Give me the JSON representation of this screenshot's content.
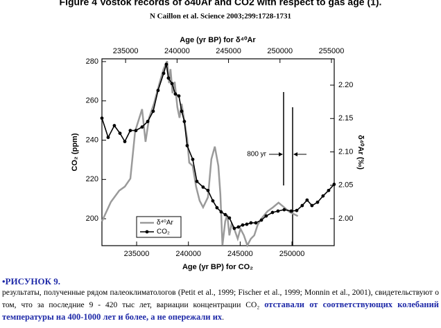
{
  "chart_data": {
    "type": "line",
    "title": "Figure 4 Vostok records of δ40Ar and CO2 with respect to gas age (1).",
    "subtitle": "N Caillon et al. Science 2003;299:1728-1731",
    "xlabel": "Age (yr BP) for CO₂",
    "x2label": "Age (yr BP) for δ⁴⁰Ar",
    "ylabel": "CO₂ (ppm)",
    "y2label": "δ⁴⁰Ar (‰)",
    "annotation": "800 yr",
    "xlim": [
      231650,
      254080
    ],
    "xticks": [
      235000,
      240000,
      245000,
      250000
    ],
    "x2lim": [
      232700,
      255270
    ],
    "x2ticks": [
      235000,
      240000,
      245000,
      250000,
      255000
    ],
    "ylim": [
      186.3,
      281.4
    ],
    "yticks": [
      200,
      220,
      240,
      260,
      280
    ],
    "y2lim": [
      1.9596,
      2.2394
    ],
    "y2ticks": [
      {
        "value": 2,
        "label": "2.00"
      },
      2.05,
      {
        "value": 2.1,
        "label": "2.10"
      },
      2.15,
      {
        "value": 2.2,
        "label": "2.20"
      }
    ],
    "series": [
      {
        "name": "δ⁴⁰Ar",
        "color": "#9a9a9a",
        "axis": "y2",
        "x_axis": "x2",
        "x": [
          232700,
          233570,
          234380,
          234920,
          235460,
          235930,
          236600,
          236940,
          237280,
          237750,
          238290,
          238690,
          239030,
          239230,
          239360,
          239560,
          239770,
          240030,
          240240,
          240440,
          240710,
          240980,
          241180,
          241520,
          241850,
          242190,
          242530,
          243000,
          243330,
          243670,
          244010,
          244210,
          244410,
          244680,
          244880,
          245080,
          245280,
          245550,
          245890,
          246160,
          246490,
          246830,
          247170,
          247500,
          247840,
          248240,
          248780,
          249320,
          249860,
          250400,
          250940,
          251740
        ],
        "values": [
          1.996,
          2.025,
          2.042,
          2.048,
          2.06,
          2.131,
          2.164,
          2.115,
          2.151,
          2.172,
          2.203,
          2.224,
          2.236,
          2.203,
          2.224,
          2.188,
          2.205,
          2.167,
          2.151,
          2.172,
          2.146,
          2.12,
          2.084,
          2.079,
          2.048,
          2.027,
          2.017,
          2.032,
          2.089,
          2.108,
          2.079,
          2.037,
          1.96,
          1.996,
          2.006,
          1.975,
          1.991,
          1.985,
          1.97,
          1.985,
          1.975,
          1.96,
          1.97,
          1.975,
          1.991,
          2.001,
          2.011,
          2.017,
          2.024,
          2.017,
          2.01,
          2.004
        ]
      },
      {
        "name": "CO₂",
        "color": "#000000",
        "x": [
          231650,
          232250,
          232850,
          233390,
          233860,
          234390,
          234930,
          235530,
          236070,
          236600,
          237070,
          237610,
          237870,
          238070,
          238410,
          238740,
          239080,
          239350,
          239610,
          239880,
          240420,
          240820,
          241420,
          241890,
          242360,
          242760,
          243160,
          243560,
          243960,
          244430,
          244830,
          245240,
          245640,
          246040,
          246510,
          247050,
          247510,
          248120,
          248650,
          249250,
          249920,
          250460,
          250990,
          251460,
          251930,
          252470,
          253000,
          253540,
          254070
        ],
        "values": [
          251.2,
          241.4,
          247.4,
          243.5,
          239.3,
          244.9,
          244.9,
          246.7,
          249.5,
          254.7,
          265.3,
          274.0,
          278.6,
          271.6,
          268.8,
          263.5,
          262.5,
          254.7,
          249.5,
          237.2,
          230.2,
          219.0,
          216.1,
          214.4,
          209.1,
          205.6,
          203.5,
          202.1,
          200.4,
          195.1,
          195.8,
          196.8,
          197.2,
          197.9,
          197.9,
          199.3,
          201.4,
          203.2,
          203.9,
          204.6,
          203.9,
          204.2,
          206.7,
          209.5,
          206.7,
          208.4,
          211.6,
          214.4,
          217.5
        ]
      }
    ]
  },
  "caption": {
    "heading": "•РИСУНОК 9.",
    "text": "результаты, полученные рядом палеоклиматологов (Petit et al., 1999; Fischer et al., 1999; Monnin et al., 2001), свидетельствуют о том, что за последние 9 - 420 тыс лет, вариации концентрации CO₂ ",
    "emphasis": "отставали от соответствующих колебаний температуры на 400-1000 лет и более, а не опережали их",
    "end": "."
  }
}
